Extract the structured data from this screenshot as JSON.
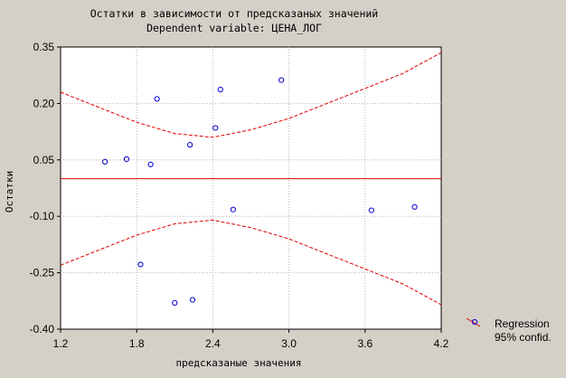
{
  "chart_data": {
    "type": "scatter",
    "title": "Остатки в зависимости от предсказаных значений",
    "subtitle": "Dependent variable: ЦЕНА_ЛОГ",
    "xlabel": "предсказаные значения",
    "ylabel": "Остатки",
    "xlim": [
      1.2,
      4.2
    ],
    "ylim": [
      -0.4,
      0.35
    ],
    "xticks": [
      1.2,
      1.8,
      2.4,
      3.0,
      3.6,
      4.2
    ],
    "xtick_labels": [
      "1.2",
      "1.8",
      "2.4",
      "3.0",
      "3.6",
      "4.2"
    ],
    "yticks": [
      -0.4,
      -0.25,
      -0.1,
      0.05,
      0.2,
      0.35
    ],
    "ytick_labels": [
      "-0.40",
      "-0.25",
      "-0.10",
      "0.05",
      "0.20",
      "0.35"
    ],
    "grid": true,
    "legend_position": "bottom-right",
    "legend": [
      "Regression",
      "95% confid."
    ],
    "regression_line": {
      "y": 0.0
    },
    "confidence_band": {
      "x": [
        1.2,
        1.5,
        1.8,
        2.1,
        2.4,
        2.7,
        3.0,
        3.3,
        3.6,
        3.9,
        4.2
      ],
      "upper": [
        0.23,
        0.19,
        0.15,
        0.12,
        0.11,
        0.13,
        0.16,
        0.2,
        0.24,
        0.28,
        0.335
      ],
      "lower": [
        -0.23,
        -0.19,
        -0.15,
        -0.12,
        -0.11,
        -0.13,
        -0.16,
        -0.2,
        -0.24,
        -0.28,
        -0.335
      ]
    },
    "points": [
      {
        "x": 1.55,
        "y": 0.045
      },
      {
        "x": 1.72,
        "y": 0.052
      },
      {
        "x": 1.83,
        "y": -0.228
      },
      {
        "x": 1.91,
        "y": 0.038
      },
      {
        "x": 1.96,
        "y": 0.212
      },
      {
        "x": 2.1,
        "y": -0.33
      },
      {
        "x": 2.22,
        "y": 0.09
      },
      {
        "x": 2.24,
        "y": -0.322
      },
      {
        "x": 2.42,
        "y": 0.135
      },
      {
        "x": 2.46,
        "y": 0.237
      },
      {
        "x": 2.56,
        "y": -0.082
      },
      {
        "x": 2.94,
        "y": 0.262
      },
      {
        "x": 3.65,
        "y": -0.084
      },
      {
        "x": 3.99,
        "y": -0.075
      }
    ],
    "colors": {
      "background": "#d4d0c8",
      "plot_background": "#ffffff",
      "points": "#0000cc",
      "regression": "#dd0000",
      "confidence": "#dd0000",
      "grid": "#b8b8b8"
    }
  }
}
